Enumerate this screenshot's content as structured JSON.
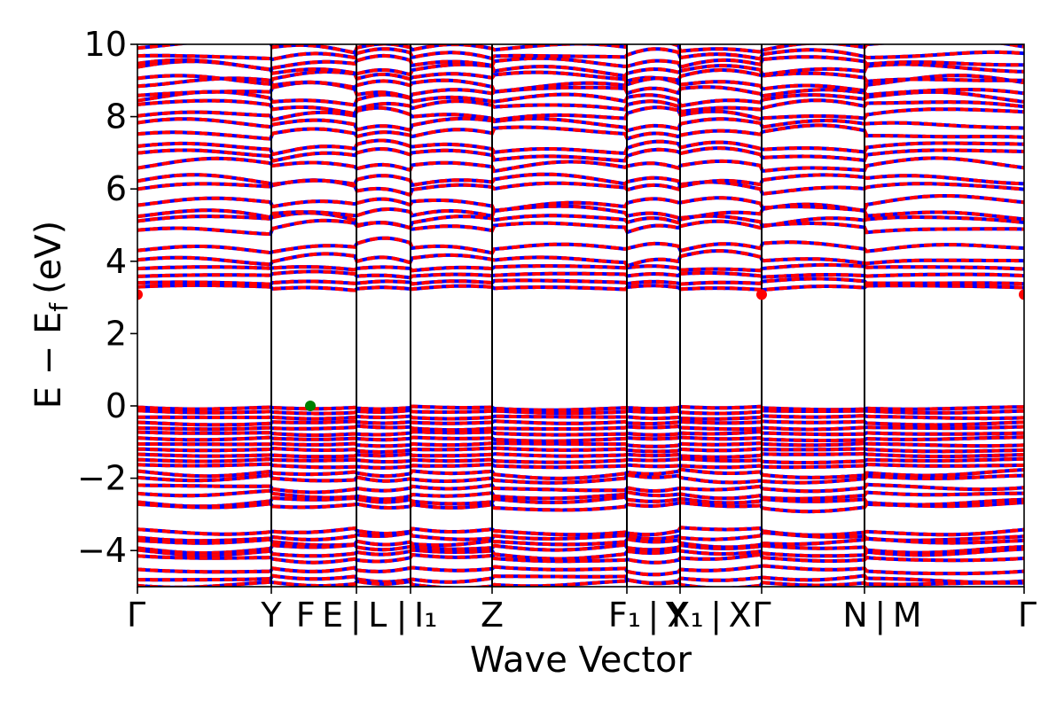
{
  "chart_data": {
    "type": "line",
    "xlabel": "Wave Vector",
    "ylabel": "E − Ef",
    "ylabel_main": "E − E",
    "ylabel_sub": "f",
    "ylabel_unit": "(eV)",
    "ylim": [
      -5,
      10
    ],
    "yticks": [
      -4,
      -2,
      0,
      2,
      4,
      6,
      8,
      10
    ],
    "ytick_labels": [
      "−4",
      "−2",
      "0",
      "2",
      "4",
      "6",
      "8",
      "10"
    ],
    "xlim": [
      0,
      10
    ],
    "kpoints": [
      {
        "x": 0.0,
        "label": "Γ"
      },
      {
        "x": 1.51,
        "label": "Y"
      },
      {
        "x": 2.47,
        "label": "F E | L"
      },
      {
        "x": 3.08,
        "label": "| I₁"
      },
      {
        "x": 4.0,
        "label": "Z"
      },
      {
        "x": 5.52,
        "label": "F₁ | Y"
      },
      {
        "x": 6.12,
        "label": "X₁ | X"
      },
      {
        "x": 7.04,
        "label": "Γ"
      },
      {
        "x": 8.2,
        "label": "N | M"
      },
      {
        "x": 10.0,
        "label": "Γ"
      }
    ],
    "tick_label_positions_x": [
      0.0,
      1.51,
      2.3,
      3.15,
      4.0,
      5.75,
      6.45,
      7.04,
      8.4,
      10.0
    ],
    "series": [
      {
        "color": "#0000ff",
        "style": "solid"
      },
      {
        "color": "#ff0000",
        "style": "dashed"
      }
    ],
    "valence_band_maximum": {
      "x": 1.95,
      "y": 0.0,
      "color": "#008000"
    },
    "conduction_band_minimum": [
      {
        "x": 0.0,
        "y": 3.08,
        "color": "#ff0000"
      },
      {
        "x": 7.04,
        "y": 3.08,
        "color": "#ff0000"
      },
      {
        "x": 10.0,
        "y": 3.08,
        "color": "#ff0000"
      }
    ],
    "band_gap_region": [
      0.0,
      3.08
    ]
  }
}
